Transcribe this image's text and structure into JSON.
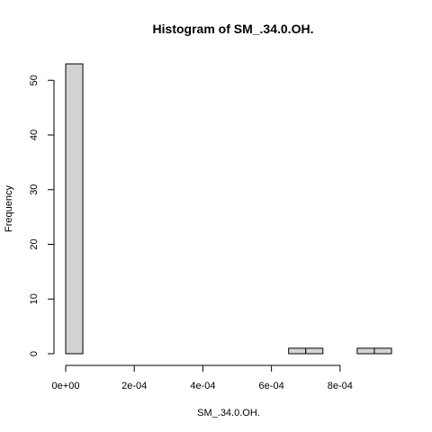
{
  "chart_data": {
    "type": "bar",
    "title": "Histogram of SM_.34.0.OH.",
    "xlabel": "SM_.34.0.OH.",
    "ylabel": "Frequency",
    "bin_width": 5e-05,
    "bins": [
      {
        "start": 0.0,
        "end": 5e-05,
        "count": 53
      },
      {
        "start": 0.00065,
        "end": 0.0007,
        "count": 1
      },
      {
        "start": 0.0007,
        "end": 0.00075,
        "count": 1
      },
      {
        "start": 0.00085,
        "end": 0.0009,
        "count": 1
      },
      {
        "start": 0.0009,
        "end": 0.00095,
        "count": 1
      }
    ],
    "xlim": [
      0,
      0.00095
    ],
    "ylim": [
      0,
      53
    ],
    "x_ticks": [
      {
        "value": 0,
        "label": "0e+00"
      },
      {
        "value": 0.0002,
        "label": "2e-04"
      },
      {
        "value": 0.0004,
        "label": "4e-04"
      },
      {
        "value": 0.0006,
        "label": "6e-04"
      },
      {
        "value": 0.0008,
        "label": "8e-04"
      }
    ],
    "y_ticks": [
      {
        "value": 0,
        "label": "0"
      },
      {
        "value": 10,
        "label": "10"
      },
      {
        "value": 20,
        "label": "20"
      },
      {
        "value": 30,
        "label": "30"
      },
      {
        "value": 40,
        "label": "40"
      },
      {
        "value": 50,
        "label": "50"
      }
    ],
    "grid": false,
    "legend": "none"
  }
}
